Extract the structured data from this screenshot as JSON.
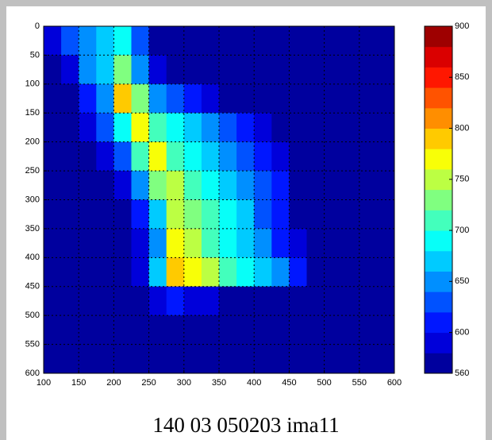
{
  "chart_data": {
    "type": "contour",
    "title": "140 03 050203 ima11",
    "x": [
      112.5,
      137.5,
      162.5,
      187.5,
      212.5,
      237.5,
      262.5,
      287.5,
      312.5,
      337.5,
      362.5,
      387.5,
      412.5,
      437.5,
      462.5,
      487.5,
      512.5,
      537.5,
      562.5,
      587.5
    ],
    "y": [
      25,
      75,
      125,
      175,
      225,
      275,
      325,
      375,
      425,
      475,
      525,
      575
    ],
    "z": [
      [
        580,
        620,
        650,
        660,
        690,
        620,
        570,
        570,
        570,
        570,
        570,
        570,
        570,
        570,
        570,
        570,
        570,
        570,
        570,
        570
      ],
      [
        570,
        590,
        640,
        670,
        720,
        650,
        590,
        570,
        570,
        570,
        570,
        570,
        570,
        570,
        570,
        570,
        570,
        570,
        570,
        570
      ],
      [
        570,
        570,
        600,
        650,
        780,
        720,
        650,
        620,
        600,
        590,
        570,
        570,
        570,
        570,
        570,
        570,
        570,
        570,
        570,
        570
      ],
      [
        570,
        570,
        580,
        620,
        680,
        770,
        700,
        680,
        660,
        640,
        620,
        600,
        580,
        570,
        570,
        570,
        570,
        570,
        570,
        570
      ],
      [
        570,
        570,
        570,
        590,
        630,
        700,
        760,
        710,
        680,
        670,
        650,
        630,
        610,
        590,
        570,
        570,
        570,
        570,
        570,
        570
      ],
      [
        570,
        570,
        570,
        570,
        590,
        640,
        720,
        740,
        700,
        680,
        670,
        650,
        630,
        600,
        570,
        570,
        570,
        570,
        570,
        570
      ],
      [
        570,
        570,
        570,
        570,
        570,
        600,
        660,
        750,
        720,
        700,
        680,
        660,
        630,
        600,
        570,
        570,
        570,
        570,
        570,
        570
      ],
      [
        570,
        570,
        570,
        570,
        570,
        580,
        650,
        760,
        740,
        710,
        690,
        670,
        640,
        600,
        580,
        570,
        570,
        570,
        570,
        570
      ],
      [
        570,
        570,
        570,
        570,
        570,
        580,
        660,
        790,
        770,
        740,
        700,
        680,
        660,
        640,
        610,
        570,
        570,
        570,
        570,
        570
      ],
      [
        570,
        570,
        570,
        570,
        570,
        570,
        580,
        600,
        590,
        580,
        570,
        570,
        570,
        570,
        570,
        570,
        570,
        570,
        570,
        570
      ],
      [
        570,
        570,
        570,
        570,
        570,
        570,
        570,
        570,
        570,
        570,
        570,
        570,
        570,
        570,
        570,
        570,
        570,
        570,
        570,
        570
      ],
      [
        570,
        570,
        570,
        570,
        570,
        570,
        570,
        570,
        570,
        570,
        570,
        570,
        570,
        570,
        570,
        570,
        570,
        570,
        570,
        570
      ]
    ],
    "xlim": [
      100,
      600
    ],
    "ylim": [
      0,
      600
    ],
    "y_reversed": true,
    "xticks": [
      100,
      150,
      200,
      250,
      300,
      350,
      400,
      450,
      500,
      550,
      600
    ],
    "yticks": [
      0,
      50,
      100,
      150,
      200,
      250,
      300,
      350,
      400,
      450,
      500,
      550,
      600
    ],
    "grid": true,
    "colormap": "jet",
    "levels": 17,
    "clim": [
      560,
      900
    ],
    "cticks": [
      560,
      600,
      650,
      700,
      750,
      800,
      850,
      900
    ]
  }
}
